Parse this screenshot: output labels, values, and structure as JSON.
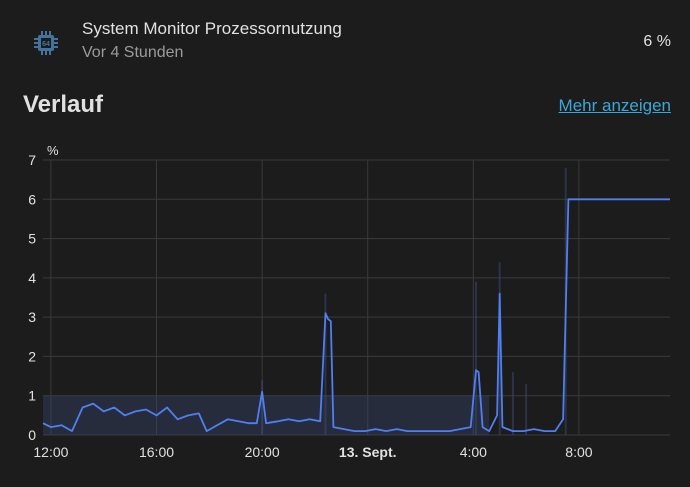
{
  "entity": {
    "icon": "cpu-chip-icon",
    "name": "System Monitor Prozessornutzung",
    "last_changed": "Vor 4 Stunden",
    "state": "6 %"
  },
  "history": {
    "title": "Verlauf",
    "more_link": "Mehr anzeigen"
  },
  "colors": {
    "background": "#1c1c1c",
    "line": "#4f7ff0",
    "band": "#3a4a78",
    "grid": "#3a3a3a",
    "text": "#e1e1e1",
    "link": "#39a8d8"
  },
  "chart_data": {
    "type": "line",
    "ylabel": "%",
    "ylim": [
      0,
      7
    ],
    "yticks": [
      "0",
      "1",
      "2",
      "3",
      "4",
      "5",
      "6",
      "7"
    ],
    "xlim_hours": [
      11.7,
      11.45
    ],
    "xticks": [
      {
        "label": "12:00",
        "hour": 12,
        "bold": false
      },
      {
        "label": "16:00",
        "hour": 16,
        "bold": false
      },
      {
        "label": "20:00",
        "hour": 20,
        "bold": false
      },
      {
        "label": "13. Sept.",
        "hour": 24,
        "bold": true
      },
      {
        "label": "4:00",
        "hour": 28,
        "bold": false
      },
      {
        "label": "8:00",
        "hour": 32,
        "bold": false
      }
    ],
    "grid": true,
    "series": [
      {
        "points": [
          [
            11.7,
            0.3
          ],
          [
            12.0,
            0.2
          ],
          [
            12.4,
            0.25
          ],
          [
            12.8,
            0.1
          ],
          [
            13.2,
            0.7
          ],
          [
            13.6,
            0.8
          ],
          [
            14.0,
            0.6
          ],
          [
            14.4,
            0.7
          ],
          [
            14.8,
            0.5
          ],
          [
            15.2,
            0.6
          ],
          [
            15.6,
            0.65
          ],
          [
            16.0,
            0.5
          ],
          [
            16.4,
            0.7
          ],
          [
            16.8,
            0.4
          ],
          [
            17.2,
            0.5
          ],
          [
            17.6,
            0.55
          ],
          [
            17.9,
            0.1
          ],
          [
            18.3,
            0.25
          ],
          [
            18.7,
            0.4
          ],
          [
            19.1,
            0.35
          ],
          [
            19.5,
            0.3
          ],
          [
            19.8,
            0.3
          ],
          [
            20.0,
            1.1
          ],
          [
            20.15,
            0.3
          ],
          [
            20.6,
            0.35
          ],
          [
            21.0,
            0.4
          ],
          [
            21.4,
            0.35
          ],
          [
            21.8,
            0.4
          ],
          [
            22.2,
            0.35
          ],
          [
            22.4,
            3.1
          ],
          [
            22.5,
            2.95
          ],
          [
            22.6,
            2.9
          ],
          [
            22.7,
            0.2
          ],
          [
            23.1,
            0.15
          ],
          [
            23.5,
            0.1
          ],
          [
            23.9,
            0.1
          ],
          [
            24.3,
            0.15
          ],
          [
            24.7,
            0.1
          ],
          [
            25.1,
            0.15
          ],
          [
            25.5,
            0.1
          ],
          [
            25.9,
            0.1
          ],
          [
            26.3,
            0.1
          ],
          [
            26.7,
            0.1
          ],
          [
            27.1,
            0.1
          ],
          [
            27.5,
            0.15
          ],
          [
            27.9,
            0.2
          ],
          [
            28.1,
            1.65
          ],
          [
            28.2,
            1.6
          ],
          [
            28.35,
            0.2
          ],
          [
            28.6,
            0.1
          ],
          [
            28.9,
            0.5
          ],
          [
            29.0,
            3.6
          ],
          [
            29.1,
            0.2
          ],
          [
            29.5,
            0.1
          ],
          [
            29.9,
            0.1
          ],
          [
            30.3,
            0.15
          ],
          [
            30.7,
            0.1
          ],
          [
            31.1,
            0.1
          ],
          [
            31.4,
            0.4
          ],
          [
            31.6,
            6.0
          ],
          [
            35.45,
            6.0
          ]
        ],
        "band": [
          [
            11.7,
            0.0,
            1.0
          ],
          [
            28.6,
            0.0,
            1.0
          ]
        ]
      }
    ]
  }
}
